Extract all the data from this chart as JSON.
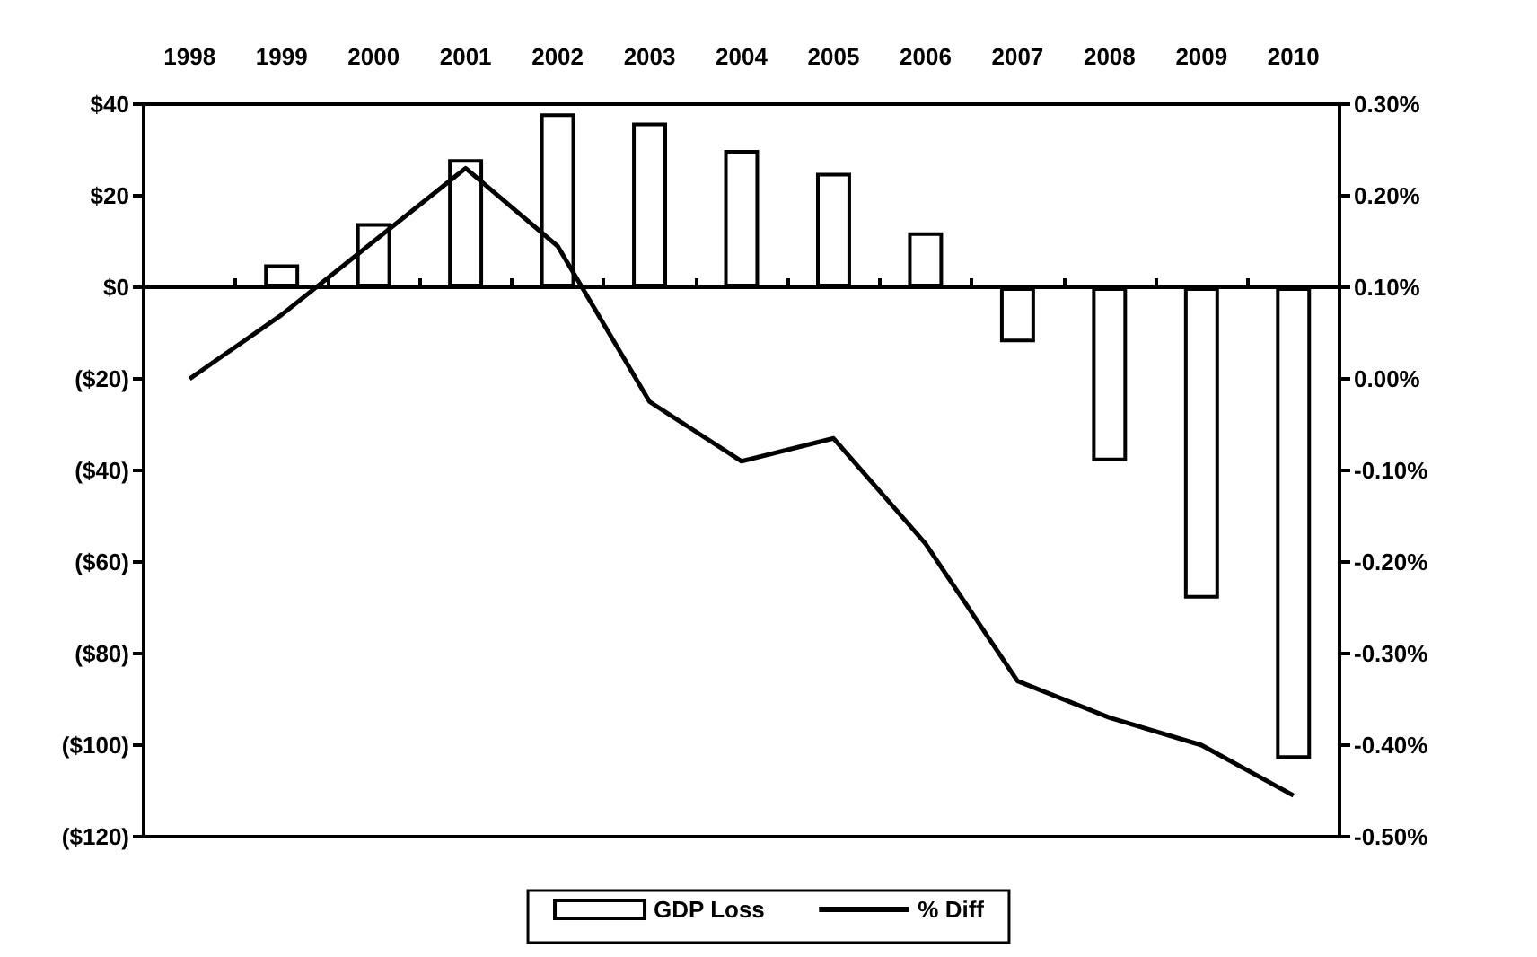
{
  "chart_data": {
    "type": "bar",
    "categories": [
      "1998",
      "1999",
      "2000",
      "2001",
      "2002",
      "2003",
      "2004",
      "2005",
      "2006",
      "2007",
      "2008",
      "2009",
      "2010"
    ],
    "series": [
      {
        "name": "GDP Loss",
        "color": "#ffffff",
        "values": [
          null,
          5,
          14,
          28,
          38,
          36,
          30,
          25,
          12,
          -12,
          -38,
          -68,
          -103
        ]
      },
      {
        "name": "% Diff",
        "type": "line",
        "axis": "y2",
        "color": "#000000",
        "values": [
          0.0,
          0.07,
          0.15,
          0.23,
          0.145,
          -0.025,
          -0.09,
          -0.065,
          -0.18,
          -0.33,
          -0.37,
          -0.4,
          -0.455
        ]
      }
    ],
    "ylim": [
      -120,
      40
    ],
    "yticks": [
      {
        "value": -120,
        "label": "($120)"
      },
      {
        "value": -100,
        "label": "($100)"
      },
      {
        "value": -80,
        "label": "($80)"
      },
      {
        "value": -60,
        "label": "($60)"
      },
      {
        "value": -40,
        "label": "($40)"
      },
      {
        "value": -20,
        "label": "($20)"
      },
      {
        "value": 0,
        "label": "$0"
      },
      {
        "value": 20,
        "label": "$20"
      },
      {
        "value": 40,
        "label": "$40"
      }
    ],
    "y2lim": [
      -0.5,
      0.3
    ],
    "y2ticks": [
      {
        "value": -0.5,
        "label": "-0.50%"
      },
      {
        "value": -0.4,
        "label": "-0.40%"
      },
      {
        "value": -0.3,
        "label": "-0.30%"
      },
      {
        "value": -0.2,
        "label": "-0.20%"
      },
      {
        "value": -0.1,
        "label": "-0.10%"
      },
      {
        "value": 0,
        "label": "0.00%"
      },
      {
        "value": 0.1,
        "label": "0.10%"
      },
      {
        "value": 0.2,
        "label": "0.20%"
      },
      {
        "value": 0.3,
        "label": "0.30%"
      }
    ],
    "legend": "bottom",
    "marker": "none",
    "line_style": "solid"
  }
}
